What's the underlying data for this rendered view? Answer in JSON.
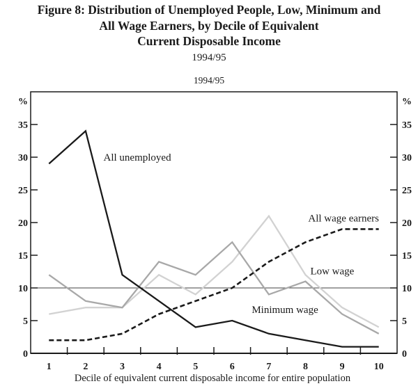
{
  "figure": {
    "title_line1": "Figure 8: Distribution of Unemployed People, Low, Minimum and",
    "title_line2": "All Wage Earners, by Decile of Equivalent",
    "title_line3": "Current Disposable Income",
    "title_period": "1994/95"
  },
  "chart_data": {
    "type": "line",
    "title": "1994/95",
    "xlabel": "Decile of equivalent current disposable income for entire population",
    "ylabel_left": "%",
    "ylabel_right": "%",
    "categories": [
      1,
      2,
      3,
      4,
      5,
      6,
      7,
      8,
      9,
      10
    ],
    "xtick_labels": [
      "1",
      "2",
      "3",
      "4",
      "5",
      "6",
      "7",
      "8",
      "9",
      "10"
    ],
    "xlim": [
      0.5,
      10.5
    ],
    "ylim": [
      0,
      40
    ],
    "yticks": [
      0,
      5,
      10,
      15,
      20,
      25,
      30,
      35
    ],
    "grid": false,
    "legend_position": "inline-annotations",
    "reference_line_y": 10,
    "series": [
      {
        "name": "Low wage",
        "color": "#d2d2d2",
        "style": "solid",
        "values": [
          6,
          7,
          7,
          12,
          9,
          14,
          21,
          12,
          7,
          4
        ]
      },
      {
        "name": "Minimum wage",
        "color": "#a8a8a8",
        "style": "solid",
        "values": [
          12,
          8,
          7,
          14,
          12,
          17,
          9,
          11,
          6,
          3
        ]
      },
      {
        "name": "All unemployed",
        "color": "#1a1a1a",
        "style": "solid",
        "values": [
          29,
          34,
          12,
          8,
          4,
          5,
          3,
          2,
          1,
          1
        ]
      },
      {
        "name": "All wage earners",
        "color": "#1a1a1a",
        "style": "dashed",
        "values": [
          2,
          2,
          3,
          6,
          8,
          10,
          14,
          17,
          19,
          19
        ]
      }
    ],
    "annotations": [
      {
        "text": "All unemployed",
        "x": 3.41,
        "y": 30.0
      },
      {
        "text": "All wage earners",
        "x": 9.04,
        "y": 20.7
      },
      {
        "text": "Low wage",
        "x": 8.73,
        "y": 12.6
      },
      {
        "text": "Minimum wage",
        "x": 7.44,
        "y": 6.7
      }
    ],
    "colors": {
      "axis": "#1a1a1a",
      "reference_line": "#404040",
      "low_wage": "#d2d2d2",
      "minimum_wage": "#a8a8a8",
      "black_series": "#1a1a1a"
    }
  }
}
